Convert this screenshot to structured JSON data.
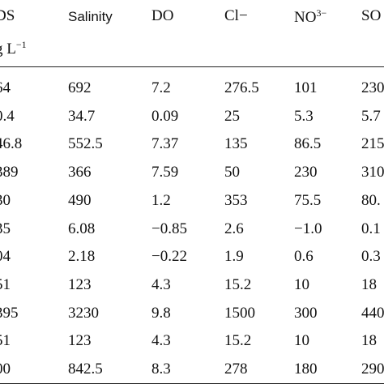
{
  "table": {
    "header": {
      "col0_line1": "DS",
      "col0_line2": "g L",
      "col0_line2_sup": "−1",
      "salinity": "Salinity",
      "do": "DO",
      "cl": "Cl−",
      "no3_base": "NO",
      "no3_sup": "3−",
      "so_partial": "SO"
    },
    "rows": [
      [
        "64",
        "692",
        "7.2",
        "276.5",
        "101",
        "230"
      ],
      [
        "0.4",
        "34.7",
        "0.09",
        "25",
        "5.3",
        "5.7"
      ],
      [
        "46.8",
        "552.5",
        "7.37",
        "135",
        "86.5",
        "215"
      ],
      [
        "389",
        "366",
        "7.59",
        "50",
        "230",
        "310"
      ],
      [
        "30",
        "490",
        "1.2",
        "353",
        "75.5",
        "80."
      ],
      [
        "35",
        "6.08",
        "−0.85",
        "2.6",
        "−1.0",
        "0.1"
      ],
      [
        "04",
        "2.18",
        "−0.22",
        "1.9",
        "0.6",
        "0.3"
      ],
      [
        "51",
        "123",
        "4.3",
        "15.2",
        "10",
        "18"
      ],
      [
        "395",
        "3230",
        "9.8",
        "1500",
        "300",
        "440"
      ],
      [
        "51",
        "123",
        "4.3",
        "15.2",
        "10",
        "18"
      ],
      [
        "00",
        "842.5",
        "8.3",
        "278",
        "180",
        "290"
      ]
    ]
  }
}
